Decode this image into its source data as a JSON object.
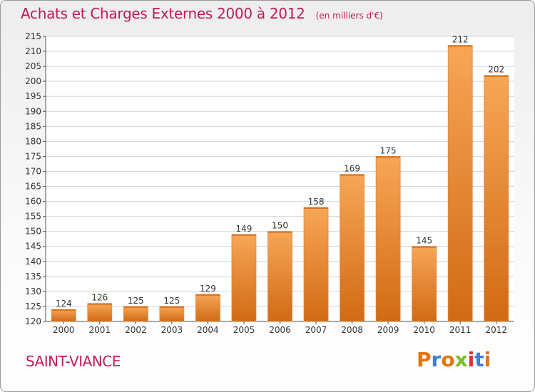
{
  "header": {
    "title": "Achats et Charges Externes 2000 à 2012",
    "subtitle": "(en milliers d'€)"
  },
  "footer": {
    "commune": "SAINT-VIANCE",
    "logo_text": "Proxiti",
    "logo_colors": [
      "#e8730f",
      "#3a7fd0",
      "#e8730f",
      "#7dbb26",
      "#d9342b",
      "#3a7fd0",
      "#e8730f"
    ]
  },
  "colors": {
    "bar_top": "#f7a657",
    "bar_bottom": "#d16a14",
    "grid": "#d4d4d4",
    "title": "#c0195c"
  },
  "chart_data": {
    "type": "bar",
    "title": "Achats et Charges Externes 2000 à 2012",
    "subtitle": "(en milliers d'€)",
    "categories": [
      "2000",
      "2001",
      "2002",
      "2003",
      "2004",
      "2005",
      "2006",
      "2007",
      "2008",
      "2009",
      "2010",
      "2011",
      "2012"
    ],
    "values": [
      124,
      126,
      125,
      125,
      129,
      149,
      150,
      158,
      169,
      175,
      145,
      212,
      202
    ],
    "ylim": [
      120,
      215
    ],
    "yticks": [
      120,
      125,
      130,
      135,
      140,
      145,
      150,
      155,
      160,
      165,
      170,
      175,
      180,
      185,
      190,
      195,
      200,
      205,
      210,
      215
    ],
    "grid": true,
    "data_labels": true,
    "xlabel": "",
    "ylabel": ""
  }
}
